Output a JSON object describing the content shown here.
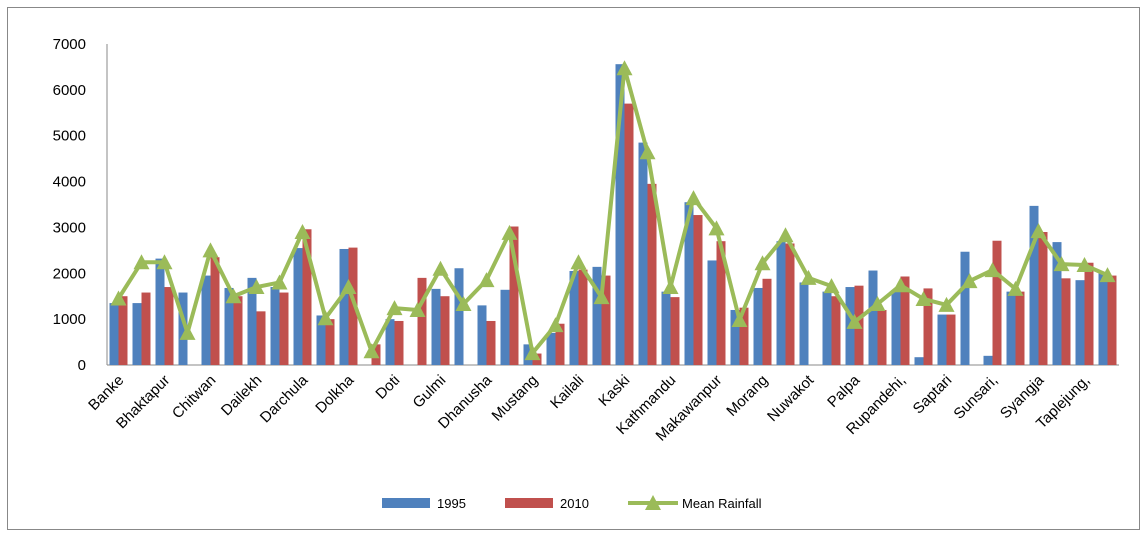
{
  "chart_data": {
    "type": "bar-line",
    "categories": [
      "Banke",
      null,
      "Bhaktapur",
      null,
      "Chitwan",
      null,
      "Dailekh",
      null,
      "Darchula",
      null,
      "Dolkha",
      null,
      "Doti",
      null,
      "Gulmi",
      null,
      "Dhanusha",
      null,
      "Mustang",
      null,
      "Kailali",
      null,
      "Kaski",
      null,
      "Kathmandu",
      null,
      "Makawanpur",
      null,
      "Morang",
      null,
      "Nuwakot",
      null,
      "Palpa",
      null,
      "Rupandehi,",
      null,
      "Saptari",
      null,
      "Sunsari,",
      null,
      "Syangja",
      null,
      "Taplejung,",
      null
    ],
    "series": [
      {
        "name": "1995",
        "type": "bar",
        "color": "#4f81bd",
        "values": [
          1350,
          1350,
          2320,
          1580,
          1950,
          1680,
          1900,
          1700,
          2550,
          1080,
          2530,
          null,
          1000,
          null,
          1660,
          2110,
          1300,
          1640,
          450,
          700,
          2050,
          2140,
          6560,
          4850,
          1600,
          3550,
          2280,
          1200,
          1680,
          2700,
          1800,
          1600,
          1700,
          2060,
          1600,
          170,
          1100,
          2470,
          200,
          1600,
          3470,
          2680,
          1850,
          2000
        ]
      },
      {
        "name": "2010",
        "type": "bar",
        "color": "#c0504d",
        "values": [
          1500,
          1580,
          1700,
          null,
          2350,
          1500,
          1170,
          1580,
          2960,
          1000,
          2560,
          450,
          960,
          1900,
          1500,
          null,
          960,
          3020,
          250,
          900,
          2080,
          1950,
          5700,
          3950,
          1480,
          3270,
          2700,
          1250,
          1880,
          2650,
          null,
          1500,
          1730,
          1200,
          1930,
          1670,
          1100,
          null,
          2710,
          1600,
          2900,
          1890,
          2230,
          1950
        ]
      },
      {
        "name": "Mean Rainfall",
        "type": "line",
        "color": "#9bbb59",
        "values": [
          1450,
          2240,
          2240,
          700,
          2500,
          1500,
          1700,
          1800,
          2900,
          1020,
          1700,
          300,
          1240,
          1200,
          2100,
          1330,
          1850,
          2880,
          260,
          870,
          2240,
          1480,
          6470,
          4640,
          1700,
          3640,
          2980,
          980,
          2220,
          2830,
          1900,
          1720,
          940,
          1330,
          1740,
          1440,
          1310,
          1830,
          2070,
          1660,
          2920,
          2200,
          2180,
          1960
        ]
      }
    ],
    "ylim": [
      0,
      7000
    ],
    "yticks": [
      0,
      1000,
      2000,
      3000,
      4000,
      5000,
      6000,
      7000
    ],
    "grid": false,
    "legend": "bottom"
  }
}
